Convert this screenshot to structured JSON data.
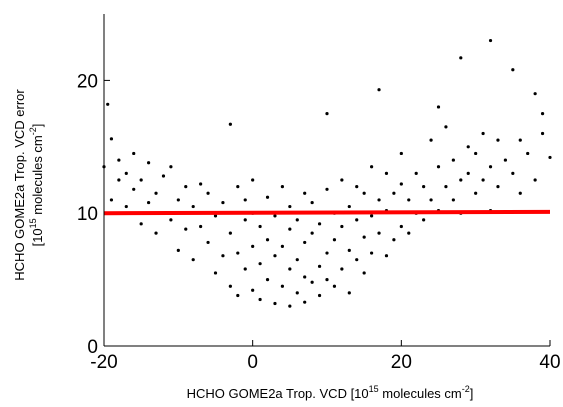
{
  "chart_data": {
    "type": "scatter",
    "x_label": [
      "HCHO GOME2a Trop. VCD [10",
      "15",
      " molecules cm",
      "-2",
      "]"
    ],
    "y_label": [
      "HCHO GOME2a Trop. VCD error",
      "[10",
      "15",
      " molecules cm",
      "-2",
      "]"
    ],
    "xlim": [
      -20,
      40
    ],
    "ylim": [
      0,
      25
    ],
    "xticks": [
      -20,
      0,
      20,
      40
    ],
    "yticks": [
      0,
      10,
      20
    ],
    "series": [
      {
        "color": "#000000",
        "x": [
          -20,
          -19.5,
          -19,
          -19,
          -18,
          -18,
          -17,
          -17,
          -16,
          -16,
          -15,
          -15,
          -14,
          -14,
          -13,
          -13,
          -12,
          -12,
          -11,
          -11,
          -10,
          -10,
          -9,
          -9,
          -8,
          -8,
          -7,
          -7,
          -6,
          -6,
          -5,
          -5,
          -4,
          -4,
          -3,
          -3,
          -3,
          -2,
          -2,
          -2,
          -1,
          -1,
          -1,
          0,
          0,
          0,
          0,
          1,
          1,
          1,
          2,
          2,
          2,
          3,
          3,
          3,
          4,
          4,
          4,
          5,
          5,
          5,
          5,
          6,
          6,
          6,
          7,
          7,
          7,
          7,
          8,
          8,
          8,
          9,
          9,
          9,
          10,
          10,
          10,
          10,
          11,
          11,
          11,
          12,
          12,
          12,
          13,
          13,
          13,
          14,
          14,
          14,
          15,
          15,
          15,
          16,
          16,
          16,
          17,
          17,
          17,
          18,
          18,
          18,
          19,
          19,
          20,
          20,
          20,
          21,
          21,
          22,
          22,
          23,
          23,
          24,
          24,
          25,
          25,
          25,
          26,
          26,
          27,
          27,
          28,
          28,
          28,
          29,
          29,
          30,
          30,
          31,
          31,
          32,
          32,
          32,
          33,
          33,
          34,
          35,
          35,
          36,
          36,
          37,
          38,
          38,
          39,
          39,
          40
        ],
        "values": [
          13.5,
          18.2,
          15.6,
          11,
          14,
          12.5,
          10.5,
          13,
          14.5,
          11.8,
          9.2,
          12.5,
          13.8,
          10.8,
          11.5,
          8.5,
          12.8,
          10,
          9.5,
          13.5,
          7.2,
          11,
          12,
          8.8,
          10.5,
          6.5,
          9,
          12.2,
          7.8,
          11.5,
          5.5,
          9.8,
          10.8,
          6.8,
          16.7,
          4.5,
          8.5,
          12,
          7,
          3.8,
          9.5,
          5.8,
          11,
          4.2,
          7.5,
          10,
          12.5,
          6.2,
          9,
          3.5,
          5,
          8,
          11.2,
          3.2,
          6.8,
          9.8,
          4.5,
          7.5,
          12,
          3,
          5.8,
          8.8,
          10.5,
          4,
          6.5,
          9.5,
          3.3,
          5.2,
          7.8,
          11.5,
          4.8,
          8.5,
          10.8,
          3.8,
          6,
          9.2,
          17.5,
          5,
          7,
          11.8,
          4.5,
          8,
          10,
          5.8,
          9,
          12.5,
          4,
          7.2,
          10.5,
          6.5,
          9.5,
          12,
          5.5,
          8.2,
          11.5,
          7,
          9.8,
          13.5,
          19.3,
          8.5,
          11,
          6.8,
          10.2,
          13,
          8,
          11.5,
          9,
          12.2,
          14.5,
          8.5,
          11,
          10,
          13,
          9.5,
          12,
          15.5,
          11,
          18,
          10.2,
          13.5,
          12,
          16.5,
          11,
          14,
          21.7,
          12.5,
          10,
          15,
          13,
          11.5,
          14.5,
          16,
          12.5,
          23,
          13.5,
          10.2,
          15.5,
          12,
          14,
          20.8,
          13,
          15.5,
          11.5,
          14.5,
          19,
          12.5,
          17.5,
          16,
          14.2
        ]
      }
    ],
    "lines": [
      {
        "color": "#ff0000",
        "x": [
          -20,
          40
        ],
        "values": [
          10,
          10.1
        ]
      }
    ]
  }
}
